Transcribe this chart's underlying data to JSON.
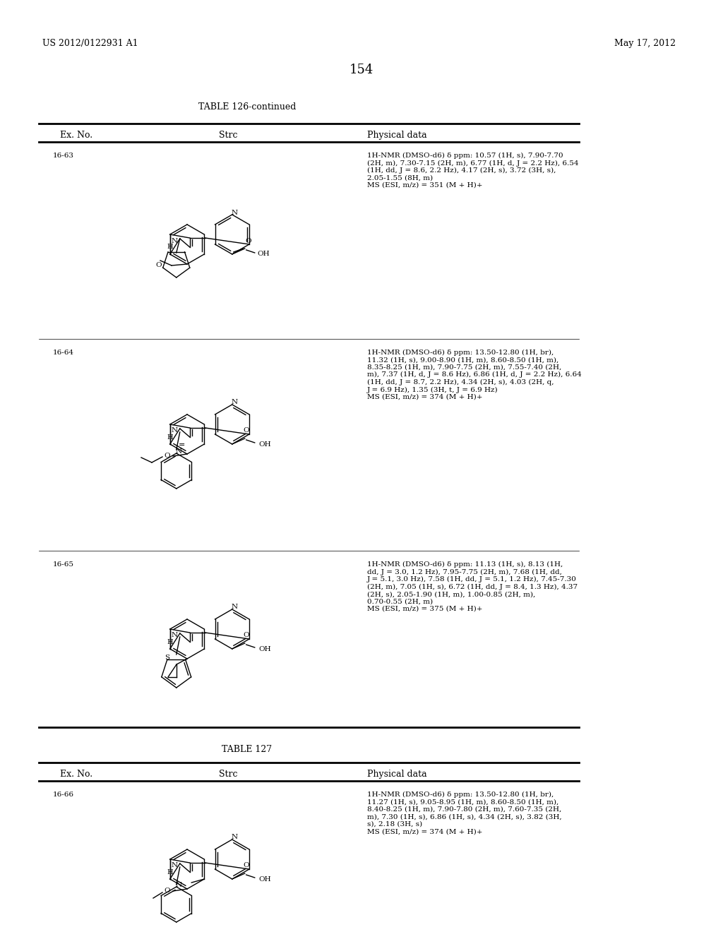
{
  "page_number": "154",
  "patent_number": "US 2012/0122931 A1",
  "patent_date": "May 17, 2012",
  "table1_title": "TABLE 126-continued",
  "table2_title": "TABLE 127",
  "col_headers": [
    "Ex. No.",
    "Strc",
    "Physical data"
  ],
  "rows": [
    {
      "ex_no": "16-63",
      "physical_data": "1H-NMR (DMSO-d6) δ ppm: 10.57 (1H, s), 7.90-7.70\n(2H, m), 7.30-7.15 (2H, m), 6.77 (1H, d, J = 2.2 Hz), 6.54\n(1H, dd, J = 8.6, 2.2 Hz), 4.17 (2H, s), 3.72 (3H, s),\n2.05-1.55 (8H, m)\nMS (ESI, m/z) = 351 (M + H)+"
    },
    {
      "ex_no": "16-64",
      "physical_data": "1H-NMR (DMSO-d6) δ ppm: 13.50-12.80 (1H, br),\n11.32 (1H, s), 9.00-8.90 (1H, m), 8.60-8.50 (1H, m),\n8.35-8.25 (1H, m), 7.90-7.75 (2H, m), 7.55-7.40 (2H,\nm), 7.37 (1H, d, J = 8.6 Hz), 6.86 (1H, d, J = 2.2 Hz), 6.64\n(1H, dd, J = 8.7, 2.2 Hz), 4.34 (2H, s), 4.03 (2H, q,\nJ = 6.9 Hz), 1.35 (3H, t, J = 6.9 Hz)\nMS (ESI, m/z) = 374 (M + H)+"
    },
    {
      "ex_no": "16-65",
      "physical_data": "1H-NMR (DMSO-d6) δ ppm: 11.13 (1H, s), 8.13 (1H,\ndd, J = 3.0, 1.2 Hz), 7.95-7.75 (2H, m), 7.68 (1H, dd,\nJ = 5.1, 3.0 Hz), 7.58 (1H, dd, J = 5.1, 1.2 Hz), 7.45-7.30\n(2H, m), 7.05 (1H, s), 6.72 (1H, dd, J = 8.4, 1.3 Hz), 4.37\n(2H, s), 2.05-1.90 (1H, m), 1.00-0.85 (2H, m),\n0.70-0.55 (2H, m)\nMS (ESI, m/z) = 375 (M + H)+"
    },
    {
      "ex_no": "16-66",
      "physical_data": "1H-NMR (DMSO-d6) δ ppm: 13.50-12.80 (1H, br),\n11.27 (1H, s), 9.05-8.95 (1H, m), 8.60-8.50 (1H, m),\n8.40-8.25 (1H, m), 7.90-7.80 (2H, m), 7.60-7.35 (2H,\nm), 7.30 (1H, s), 6.86 (1H, s), 4.34 (2H, s), 3.82 (3H,\ns), 2.18 (3H, s)\nMS (ESI, m/z) = 374 (M + H)+"
    }
  ],
  "background_color": "#ffffff",
  "text_color": "#000000",
  "font_size_header": 9,
  "font_size_body": 7.5,
  "font_size_title": 9,
  "font_size_page": 10,
  "font_size_patent": 9
}
